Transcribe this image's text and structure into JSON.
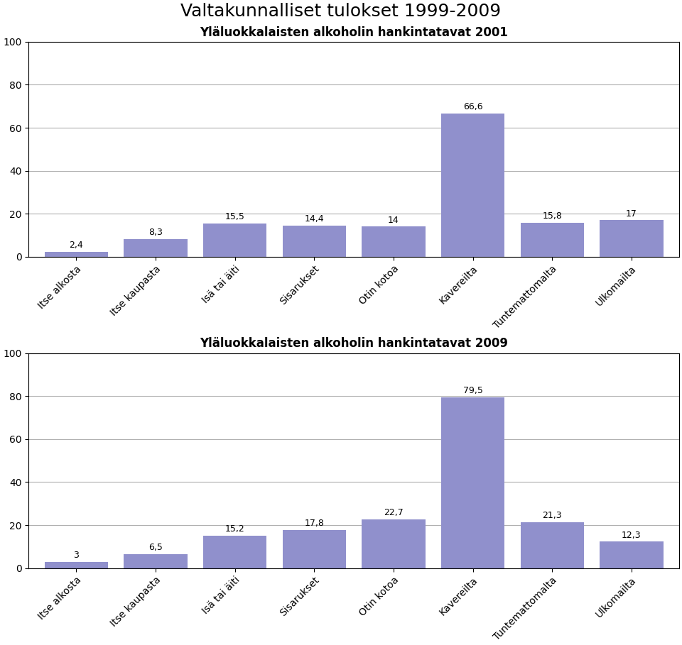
{
  "title": "Valtakunnalliset tulokset 1999-2009",
  "chart_data": [
    {
      "type": "bar",
      "title": "Yläluokkalaisten alkoholin hankintatavat 2001",
      "categories": [
        "Itse alkosta",
        "Itse kaupasta",
        "Isä tai äiti",
        "Sisarukset",
        "Otin kotoa",
        "Kavereilta",
        "Tuntemattomalta",
        "Ulkomailta"
      ],
      "values": [
        2.4,
        8.3,
        15.5,
        14.4,
        14.0,
        66.6,
        15.8,
        17.0
      ],
      "value_labels": [
        "2,4",
        "8,3",
        "15,5",
        "14,4",
        "14",
        "66,6",
        "15,8",
        "17"
      ],
      "color": "#9090cc",
      "ylim": [
        0,
        100
      ],
      "yticks": [
        0,
        20,
        40,
        60,
        80,
        100
      ],
      "grid": true,
      "data_labels": true
    },
    {
      "type": "bar",
      "title": "Yläluokkalaisten alkoholin hankintatavat 2009",
      "categories": [
        "Itse alkosta",
        "Itse kaupasta",
        "Isä tai äiti",
        "Sisarukset",
        "Otin kotoa",
        "Kavereilta",
        "Tuntemattomalta",
        "Ulkomailta"
      ],
      "values": [
        3.0,
        6.5,
        15.2,
        17.8,
        22.7,
        79.5,
        21.3,
        12.3
      ],
      "value_labels": [
        "3",
        "6,5",
        "15,2",
        "17,8",
        "22,7",
        "79,5",
        "21,3",
        "12,3"
      ],
      "color": "#9090cc",
      "ylim": [
        0,
        100
      ],
      "yticks": [
        0,
        20,
        40,
        60,
        80,
        100
      ],
      "grid": true,
      "data_labels": true
    }
  ]
}
